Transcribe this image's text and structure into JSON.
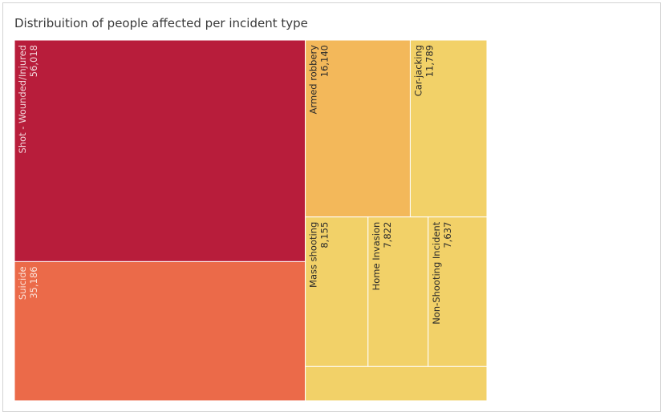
{
  "chart_data": {
    "type": "treemap",
    "title": "Distribuition of people affected per incident type",
    "items": [
      {
        "label": "Shot - Wounded/Injured",
        "value": 56018,
        "display_value": "56,018",
        "color": "#b81d3b",
        "text_color": "#f2d7dc"
      },
      {
        "label": "Suicide",
        "value": 35186,
        "display_value": "35,186",
        "color": "#eb6a49",
        "text_color": "#fbe3da"
      },
      {
        "label": "Armed robbery",
        "value": 16140,
        "display_value": "16,140",
        "color": "#f3b85a",
        "text_color": "#2a2a2a"
      },
      {
        "label": "Car-jacking",
        "value": 11789,
        "display_value": "11,789",
        "color": "#f2d168",
        "text_color": "#2a2a2a"
      },
      {
        "label": "Mass shooting",
        "value": 8155,
        "display_value": "8,155",
        "color": "#f2d168",
        "text_color": "#2a2a2a"
      },
      {
        "label": "Home Invasion",
        "value": 7822,
        "display_value": "7,822",
        "color": "#f2d168",
        "text_color": "#2a2a2a"
      },
      {
        "label": "Non-Shooting Incident",
        "value": 7637,
        "display_value": "7,637",
        "color": "#f2d168",
        "text_color": "#2a2a2a"
      },
      {
        "label": "",
        "value": 5400,
        "display_value": "",
        "color": "#f2d168",
        "text_color": "#2a2a2a"
      }
    ]
  }
}
